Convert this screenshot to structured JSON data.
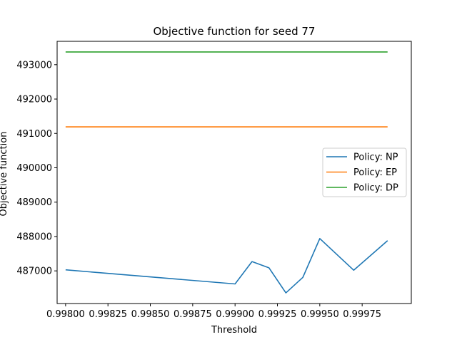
{
  "chart_data": {
    "type": "line",
    "title": "Objective function for seed 77",
    "xlabel": "Threshold",
    "ylabel": "Objective function",
    "xlim": [
      0.99795,
      1.00004
    ],
    "ylim": [
      486050,
      493680
    ],
    "xticks": [
      0.998,
      0.99825,
      0.9985,
      0.99875,
      0.999,
      0.99925,
      0.9995,
      0.99975
    ],
    "xtick_labels": [
      "0.99800",
      "0.99825",
      "0.99850",
      "0.99875",
      "0.99900",
      "0.99925",
      "0.99950",
      "0.99975"
    ],
    "yticks": [
      487000,
      488000,
      489000,
      490000,
      491000,
      492000,
      493000
    ],
    "ytick_labels": [
      "487000",
      "488000",
      "489000",
      "490000",
      "491000",
      "492000",
      "493000"
    ],
    "grid": false,
    "legend_position": "center-right",
    "series": [
      {
        "name": "Policy: NP",
        "color": "#1f77b4",
        "x": [
          0.998,
          0.999,
          0.9991,
          0.9992,
          0.9993,
          0.9994,
          0.9995,
          0.9997,
          0.9999
        ],
        "y": [
          487030,
          486620,
          487270,
          487090,
          486360,
          486810,
          487940,
          487020,
          487880
        ]
      },
      {
        "name": "Policy: EP",
        "color": "#ff7f0e",
        "x": [
          0.998,
          0.9999
        ],
        "y": [
          491190,
          491190
        ]
      },
      {
        "name": "Policy: DP",
        "color": "#2ca02c",
        "x": [
          0.998,
          0.9999
        ],
        "y": [
          493370,
          493370
        ]
      }
    ]
  }
}
